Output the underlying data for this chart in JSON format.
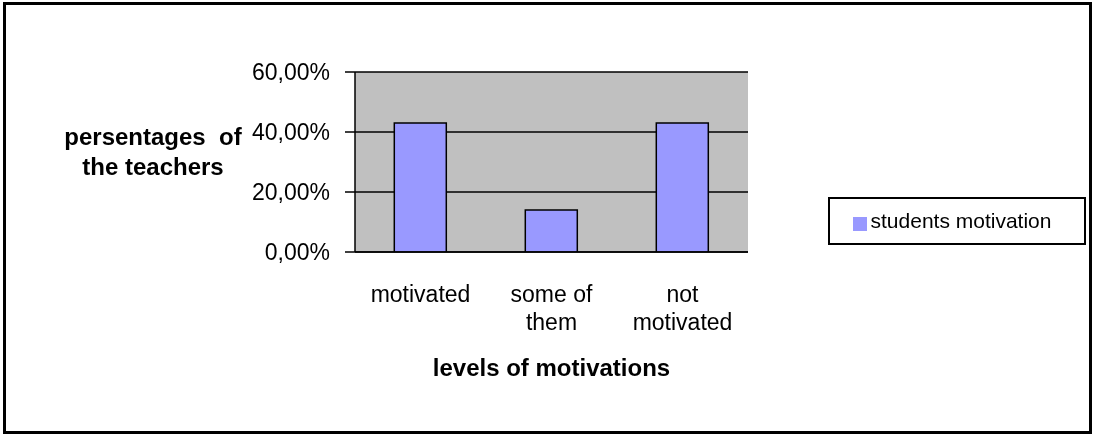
{
  "chart_data": {
    "type": "bar",
    "xlabel": "levels of motivations",
    "ylabel": "persentages  of the teachers",
    "categories": [
      "motivated",
      "some of them",
      "not motivated"
    ],
    "series": [
      {
        "name": "students motivation",
        "color": "#9999ff",
        "values": [
          43,
          14,
          43
        ]
      }
    ],
    "ylim": [
      0,
      60
    ],
    "yticks": [
      {
        "value": 0,
        "label": "0,00%"
      },
      {
        "value": 20,
        "label": "20,00%"
      },
      {
        "value": 40,
        "label": "40,00%"
      },
      {
        "value": 60,
        "label": "60,00%"
      }
    ],
    "grid": "y",
    "legend": "right"
  }
}
